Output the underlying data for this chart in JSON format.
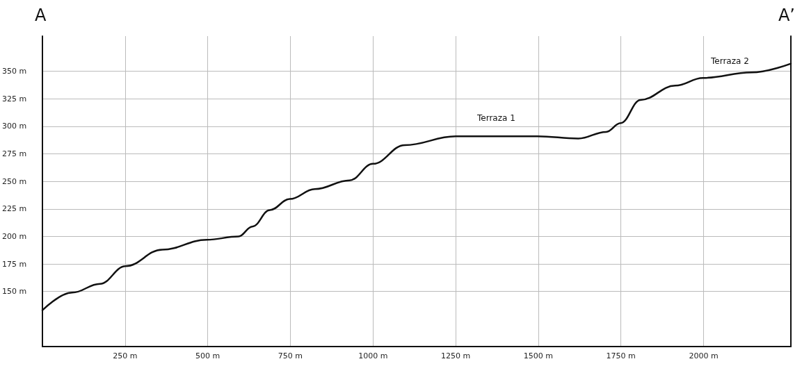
{
  "chart_data": {
    "type": "line",
    "color": "#111111",
    "x": [
      0,
      90,
      174,
      251,
      362,
      497,
      593,
      635,
      688,
      748,
      824,
      929,
      1000,
      1096,
      1250,
      1497,
      1621,
      1705,
      1749,
      1809,
      1914,
      1998,
      2145,
      2264
    ],
    "values": [
      133,
      149,
      157,
      173,
      188,
      197,
      200,
      209,
      224,
      234,
      243,
      251,
      266,
      283,
      291,
      291,
      289,
      295,
      303,
      324,
      337,
      344,
      349,
      357
    ],
    "xlim": [
      0,
      2264
    ],
    "ylim": [
      100,
      382
    ],
    "xticks": [
      {
        "value": 250,
        "label": "250 m"
      },
      {
        "value": 500,
        "label": "500 m"
      },
      {
        "value": 750,
        "label": "750 m"
      },
      {
        "value": 1000,
        "label": "1000 m"
      },
      {
        "value": 1250,
        "label": "1250 m"
      },
      {
        "value": 1500,
        "label": "1500 m"
      },
      {
        "value": 1750,
        "label": "1750 m"
      },
      {
        "value": 2000,
        "label": "2000 m"
      }
    ],
    "yticks": [
      {
        "value": 150,
        "label": "150 m"
      },
      {
        "value": 175,
        "label": "175 m"
      },
      {
        "value": 200,
        "label": "200 m"
      },
      {
        "value": 225,
        "label": "225 m"
      },
      {
        "value": 250,
        "label": "250 m"
      },
      {
        "value": 275,
        "label": "275 m"
      },
      {
        "value": 300,
        "label": "300 m"
      },
      {
        "value": 325,
        "label": "325 m"
      },
      {
        "value": 350,
        "label": "350 m"
      }
    ],
    "grid": true,
    "marker": "none",
    "line_style": "solid",
    "annotations": [
      "A",
      "A’",
      "Terraza 1",
      "Terraza 2"
    ]
  }
}
